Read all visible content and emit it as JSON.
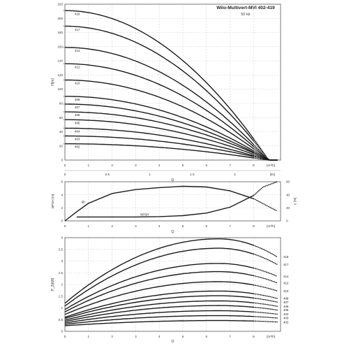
{
  "title": "Wilo-Multivert-MVI 402-419",
  "subtitle": "50 Hz",
  "chart_data": [
    {
      "type": "line",
      "ylabel": "H[m]",
      "xlabel": "Q",
      "x_unit_top": "[m³/h]",
      "x_unit_bottom": "[l/s]",
      "xlim": [
        0,
        9
      ],
      "ylim": [
        0,
        220
      ],
      "x_ticks": [
        "0",
        "1",
        "2",
        "3",
        "4",
        "5",
        "6",
        "7",
        "8"
      ],
      "x_ticks_ls": [
        "0",
        "0.5",
        "1",
        "1.5",
        "2"
      ],
      "y_ticks": [
        "0",
        "20",
        "40",
        "60",
        "80",
        "100",
        "120",
        "140",
        "160",
        "180",
        "200",
        "220"
      ],
      "grid": true,
      "series": [
        {
          "name": "419",
          "y0": 211,
          "y8": 30
        },
        {
          "name": "417",
          "y0": 189,
          "y8": 27
        },
        {
          "name": "414",
          "y0": 159,
          "y8": 22
        },
        {
          "name": "412",
          "y0": 136,
          "y8": 19
        },
        {
          "name": "410",
          "y0": 113,
          "y8": 16
        },
        {
          "name": "408",
          "y0": 90,
          "y8": 13
        },
        {
          "name": "407",
          "y0": 79,
          "y8": 11
        },
        {
          "name": "406",
          "y0": 68,
          "y8": 10
        },
        {
          "name": "405",
          "y0": 57,
          "y8": 8
        },
        {
          "name": "404",
          "y0": 45,
          "y8": 6
        },
        {
          "name": "403",
          "y0": 34,
          "y8": 5
        },
        {
          "name": "402",
          "y0": 23,
          "y8": 3
        }
      ]
    },
    {
      "type": "line",
      "ylabel_left": "NPSH [m]",
      "ylabel_right": "η [%]",
      "xlabel": "Q",
      "x_unit": "[m³/h]",
      "xlim": [
        0,
        9
      ],
      "ylim_left": [
        0,
        6
      ],
      "ylim_right": [
        0,
        60
      ],
      "x_ticks": [
        "0",
        "1",
        "2",
        "3",
        "4",
        "5",
        "6",
        "7",
        "8"
      ],
      "y_ticks_left": [
        "0",
        "2",
        "4",
        "6"
      ],
      "y_ticks_right": [
        "0",
        "20",
        "40",
        "60"
      ],
      "eta": {
        "name": "ηp",
        "x": [
          0,
          0.5,
          1,
          2,
          3,
          4,
          5,
          6,
          7,
          8,
          9
        ],
        "y": [
          0,
          14,
          27,
          42,
          48,
          51,
          53,
          52,
          46,
          34,
          15
        ]
      },
      "npsh": {
        "name": "NPSH",
        "x": [
          0.5,
          1,
          2,
          3,
          4,
          5,
          6,
          7,
          8,
          8.4,
          9
        ],
        "y": [
          0.6,
          0.6,
          0.6,
          0.6,
          0.65,
          0.8,
          1.2,
          2.1,
          3.9,
          5.2,
          6
        ]
      }
    },
    {
      "type": "line",
      "ylabel": "P_2[kW]",
      "xlabel": "Q",
      "x_unit": "[m³/h]",
      "xlim": [
        0,
        9
      ],
      "ylim": [
        0,
        4
      ],
      "x_ticks": [
        "0",
        "1",
        "2",
        "3",
        "4",
        "5",
        "6",
        "7",
        "8"
      ],
      "y_ticks": [
        "0",
        "0.5",
        "1",
        "1.5",
        "2",
        "2.5",
        "3",
        "3.5",
        "4"
      ],
      "series": [
        {
          "name": "419",
          "y0": 1.2,
          "ymax": 3.95
        },
        {
          "name": "417",
          "y0": 1.08,
          "ymax": 3.55
        },
        {
          "name": "414",
          "y0": 0.93,
          "ymax": 2.9
        },
        {
          "name": "412",
          "y0": 0.83,
          "ymax": 2.55
        },
        {
          "name": "410",
          "y0": 0.72,
          "ymax": 2.12
        },
        {
          "name": "408",
          "y0": 0.6,
          "ymax": 1.72
        },
        {
          "name": "407",
          "y0": 0.55,
          "ymax": 1.52
        },
        {
          "name": "406",
          "y0": 0.48,
          "ymax": 1.3
        },
        {
          "name": "405",
          "y0": 0.42,
          "ymax": 1.1
        },
        {
          "name": "404",
          "y0": 0.36,
          "ymax": 0.88
        },
        {
          "name": "403",
          "y0": 0.3,
          "ymax": 0.67
        },
        {
          "name": "402",
          "y0": 0.24,
          "ymax": 0.46
        }
      ]
    }
  ]
}
